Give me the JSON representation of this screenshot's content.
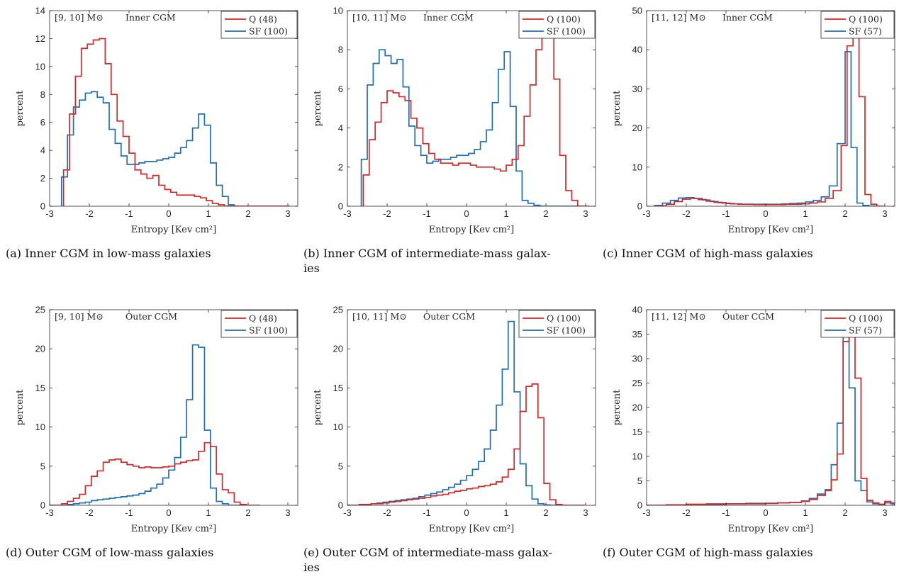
{
  "figure": {
    "captions": [
      "(a) Inner CGM in low-mass galaxies",
      "(b) Inner CGM of intermediate-mass galaxies",
      "(c) Inner CGM of high-mass galaxies",
      "(d) Outer CGM of low-mass galaxies",
      "(e) Outer CGM of intermediate-mass galaxies",
      "(f) Outer CGM of high-mass galaxies"
    ]
  },
  "colors": {
    "Q": "#d62728",
    "SF": "#1f6fb4"
  },
  "chart_data": [
    {
      "type": "line",
      "step": true,
      "grid": false,
      "legend": "top-right",
      "annotation_mass": "[9, 10] M⊙",
      "annotation_region": "Inner CGM",
      "xlabel": "Entropy [Kev cm²]",
      "ylabel": "percent",
      "xlim": [
        -3,
        3.25
      ],
      "ylim": [
        0,
        14
      ],
      "xticks": [
        -3,
        -2,
        -1,
        0,
        1,
        2,
        3
      ],
      "yticks": [
        0,
        2,
        4,
        6,
        8,
        10,
        12,
        14
      ],
      "series": [
        {
          "name": "Q (48)",
          "edges": [
            -2.65,
            -2.5,
            -2.35,
            -2.2,
            -2.05,
            -1.9,
            -1.75,
            -1.6,
            -1.45,
            -1.3,
            -1.15,
            -1.0,
            -0.85,
            -0.7,
            -0.55,
            -0.4,
            -0.25,
            -0.1,
            0.05,
            0.2,
            0.35,
            0.5,
            0.65,
            0.8,
            0.95,
            1.1,
            1.25,
            1.4,
            1.55,
            1.7,
            1.85,
            2.0,
            2.15,
            2.3,
            2.45,
            2.6,
            2.75,
            2.9,
            3.05
          ],
          "values": [
            2.6,
            6.6,
            9.3,
            11.3,
            11.6,
            11.9,
            12.0,
            10.2,
            8.0,
            6.1,
            5.0,
            3.8,
            2.6,
            2.3,
            2.0,
            2.2,
            1.5,
            1.2,
            1.0,
            0.8,
            0.8,
            0.8,
            0.7,
            0.6,
            0.4,
            0.2,
            0.1,
            0,
            0,
            0,
            0,
            0,
            0,
            0,
            0,
            0,
            0,
            0
          ]
        },
        {
          "name": "SF (100)",
          "edges": [
            -2.7,
            -2.55,
            -2.4,
            -2.25,
            -2.1,
            -1.95,
            -1.8,
            -1.65,
            -1.5,
            -1.35,
            -1.2,
            -1.05,
            -0.9,
            -0.75,
            -0.6,
            -0.45,
            -0.3,
            -0.15,
            0.0,
            0.15,
            0.3,
            0.45,
            0.6,
            0.75,
            0.9,
            1.05,
            1.2,
            1.35,
            1.5,
            1.65,
            1.8,
            1.95,
            2.1,
            2.25,
            2.4,
            2.55,
            2.7,
            2.85,
            3.0
          ],
          "values": [
            2.1,
            5.1,
            7.1,
            7.6,
            8.1,
            8.2,
            7.8,
            7.4,
            5.5,
            4.5,
            3.6,
            3.0,
            3.0,
            3.1,
            3.2,
            3.2,
            3.3,
            3.4,
            3.5,
            3.8,
            4.2,
            4.7,
            5.6,
            6.6,
            5.8,
            3.1,
            1.5,
            0.7,
            0.1,
            0,
            0,
            0,
            0,
            0,
            0,
            0,
            0,
            0
          ]
        }
      ]
    },
    {
      "type": "line",
      "step": true,
      "grid": false,
      "legend": "top-right",
      "annotation_mass": "[10, 11] M⊙",
      "annotation_region": "Inner CGM",
      "xlabel": "Entropy [Kev cm²]",
      "ylabel": "percent",
      "xlim": [
        -3,
        3.25
      ],
      "ylim": [
        0,
        10
      ],
      "xticks": [
        -3,
        -2,
        -1,
        0,
        1,
        2,
        3
      ],
      "yticks": [
        0,
        2,
        4,
        6,
        8,
        10
      ],
      "series": [
        {
          "name": "Q (100)",
          "edges": [
            -2.6,
            -2.45,
            -2.3,
            -2.15,
            -2.0,
            -1.85,
            -1.7,
            -1.55,
            -1.4,
            -1.25,
            -1.1,
            -0.95,
            -0.8,
            -0.65,
            -0.5,
            -0.35,
            -0.2,
            -0.05,
            0.1,
            0.25,
            0.4,
            0.55,
            0.7,
            0.85,
            1.0,
            1.15,
            1.3,
            1.45,
            1.6,
            1.75,
            1.9,
            2.05,
            2.2,
            2.35,
            2.5,
            2.65,
            2.8,
            2.95,
            3.1
          ],
          "values": [
            1.6,
            3.4,
            4.3,
            5.3,
            5.9,
            5.8,
            5.6,
            5.4,
            4.5,
            4.0,
            3.2,
            2.7,
            2.4,
            2.2,
            2.2,
            2.1,
            2.2,
            2.2,
            2.1,
            2.0,
            2.0,
            2.0,
            1.9,
            1.8,
            2.1,
            2.4,
            3.1,
            4.6,
            6.2,
            8.0,
            8.9,
            9.3,
            6.5,
            2.6,
            0.8,
            0.3,
            0,
            0
          ]
        },
        {
          "name": "SF (100)",
          "edges": [
            -2.65,
            -2.5,
            -2.35,
            -2.2,
            -2.05,
            -1.9,
            -1.75,
            -1.6,
            -1.45,
            -1.3,
            -1.15,
            -1.0,
            -0.85,
            -0.7,
            -0.55,
            -0.4,
            -0.25,
            -0.1,
            0.05,
            0.2,
            0.35,
            0.5,
            0.65,
            0.8,
            0.95,
            1.1,
            1.25,
            1.4,
            1.55,
            1.7,
            1.85,
            2.0,
            2.15,
            2.3,
            2.45,
            2.6,
            2.75,
            2.9,
            3.05
          ],
          "values": [
            2.4,
            6.2,
            7.3,
            8.0,
            7.7,
            7.3,
            7.5,
            6.1,
            4.1,
            3.1,
            2.6,
            2.2,
            2.3,
            2.4,
            2.4,
            2.5,
            2.6,
            2.6,
            2.7,
            2.9,
            3.3,
            3.9,
            5.3,
            7.0,
            7.9,
            5.1,
            1.8,
            0.3,
            0.15,
            0.05,
            0,
            0,
            0,
            0,
            0,
            0,
            0,
            0
          ]
        }
      ]
    },
    {
      "type": "line",
      "step": true,
      "grid": false,
      "legend": "top-right",
      "annotation_mass": "[11, 12] M⊙",
      "annotation_region": "Inner CGM",
      "xlabel": "Entropy [Kev cm²]",
      "ylabel": "percent",
      "xlim": [
        -3,
        3.25
      ],
      "ylim": [
        0,
        50
      ],
      "xticks": [
        -3,
        -2,
        -1,
        0,
        1,
        2,
        3
      ],
      "yticks": [
        0,
        10,
        20,
        30,
        40,
        50
      ],
      "series": [
        {
          "name": "Q (100)",
          "edges": [
            -2.7,
            -2.5,
            -2.3,
            -2.1,
            -1.9,
            -1.7,
            -1.5,
            -1.3,
            -1.1,
            -0.9,
            -0.7,
            -0.5,
            -0.3,
            -0.1,
            0.1,
            0.3,
            0.5,
            0.7,
            0.9,
            1.1,
            1.3,
            1.5,
            1.7,
            1.9,
            2.05,
            2.2,
            2.35,
            2.5,
            2.65,
            2.8,
            3.0
          ],
          "values": [
            0.1,
            0.5,
            1.2,
            1.8,
            2.0,
            1.7,
            1.3,
            1.0,
            0.8,
            0.6,
            0.5,
            0.5,
            0.4,
            0.4,
            0.4,
            0.4,
            0.5,
            0.5,
            0.6,
            0.8,
            1.1,
            2.0,
            4.0,
            15.5,
            41.0,
            43.5,
            28.0,
            3.0,
            0.5,
            0
          ]
        },
        {
          "name": "SF (57)",
          "edges": [
            -2.8,
            -2.6,
            -2.4,
            -2.2,
            -2.0,
            -1.8,
            -1.6,
            -1.4,
            -1.2,
            -1.0,
            -0.8,
            -0.6,
            -0.4,
            -0.2,
            0.0,
            0.2,
            0.4,
            0.6,
            0.8,
            1.0,
            1.2,
            1.4,
            1.6,
            1.8,
            2.0,
            2.15,
            2.3,
            2.45,
            2.6,
            2.8
          ],
          "values": [
            0.2,
            0.8,
            1.5,
            2.1,
            2.2,
            2.0,
            1.6,
            1.2,
            0.9,
            0.7,
            0.6,
            0.5,
            0.5,
            0.5,
            0.5,
            0.5,
            0.6,
            0.7,
            0.8,
            1.1,
            1.5,
            2.4,
            5.2,
            16.0,
            39.5,
            15.0,
            0.8,
            0.2,
            0
          ]
        }
      ]
    },
    {
      "type": "line",
      "step": true,
      "grid": false,
      "legend": "top-right",
      "annotation_mass": "[9, 10] M⊙",
      "annotation_region": "Outer CGM",
      "xlabel": "Entropy [Kev cm²]",
      "ylabel": "percent",
      "xlim": [
        -3,
        3.25
      ],
      "ylim": [
        0,
        25
      ],
      "xticks": [
        -3,
        -2,
        -1,
        0,
        1,
        2,
        3
      ],
      "yticks": [
        0,
        5,
        10,
        15,
        20,
        25
      ],
      "series": [
        {
          "name": "Q (48)",
          "edges": [
            -3.0,
            -2.7,
            -2.55,
            -2.4,
            -2.25,
            -2.1,
            -1.95,
            -1.8,
            -1.65,
            -1.5,
            -1.35,
            -1.2,
            -1.05,
            -0.9,
            -0.75,
            -0.6,
            -0.45,
            -0.3,
            -0.15,
            0.0,
            0.15,
            0.3,
            0.45,
            0.6,
            0.75,
            0.9,
            1.05,
            1.2,
            1.35,
            1.5,
            1.65,
            1.8,
            1.95,
            2.1,
            2.3
          ],
          "values": [
            0,
            0.2,
            0.5,
            0.9,
            1.4,
            2.5,
            3.7,
            4.4,
            5.5,
            5.8,
            5.9,
            5.5,
            5.2,
            5.0,
            4.8,
            4.9,
            4.8,
            4.8,
            4.9,
            5.0,
            5.3,
            5.5,
            5.7,
            5.8,
            6.9,
            8.0,
            7.5,
            4.0,
            2.0,
            1.6,
            0.4,
            0.1,
            0,
            0
          ]
        },
        {
          "name": "SF (100)",
          "edges": [
            -3.0,
            -2.55,
            -2.4,
            -2.25,
            -2.1,
            -1.95,
            -1.8,
            -1.65,
            -1.5,
            -1.35,
            -1.2,
            -1.05,
            -0.9,
            -0.75,
            -0.6,
            -0.45,
            -0.3,
            -0.15,
            0.0,
            0.15,
            0.3,
            0.45,
            0.6,
            0.75,
            0.9,
            1.05,
            1.2,
            1.35,
            1.5,
            1.65,
            1.8,
            2.0
          ],
          "values": [
            0,
            0.1,
            0.2,
            0.3,
            0.4,
            0.6,
            0.7,
            0.8,
            0.9,
            1.0,
            1.1,
            1.2,
            1.3,
            1.5,
            1.8,
            2.2,
            2.7,
            3.5,
            4.5,
            6.1,
            8.7,
            13.5,
            20.5,
            20.2,
            9.6,
            2.2,
            0.5,
            0.2,
            0,
            0,
            0
          ]
        }
      ]
    },
    {
      "type": "line",
      "step": true,
      "grid": false,
      "legend": "top-right",
      "annotation_mass": "[10, 11] M⊙",
      "annotation_region": "Outer CGM",
      "xlabel": "Entropy [Kev cm²]",
      "ylabel": "percent",
      "xlim": [
        -3,
        3.25
      ],
      "ylim": [
        0,
        25
      ],
      "xticks": [
        -3,
        -2,
        -1,
        0,
        1,
        2,
        3
      ],
      "yticks": [
        0,
        5,
        10,
        15,
        20,
        25
      ],
      "series": [
        {
          "name": "Q (100)",
          "edges": [
            -3.0,
            -2.7,
            -2.55,
            -2.4,
            -2.25,
            -2.1,
            -1.95,
            -1.8,
            -1.65,
            -1.5,
            -1.35,
            -1.2,
            -1.05,
            -0.9,
            -0.75,
            -0.6,
            -0.45,
            -0.3,
            -0.15,
            0.0,
            0.15,
            0.3,
            0.45,
            0.6,
            0.75,
            0.9,
            1.05,
            1.2,
            1.35,
            1.5,
            1.65,
            1.8,
            1.95,
            2.1,
            2.25,
            2.4,
            2.55,
            2.7,
            2.85,
            3.0
          ],
          "values": [
            0,
            0.1,
            0.1,
            0.2,
            0.2,
            0.3,
            0.4,
            0.5,
            0.6,
            0.7,
            0.8,
            0.9,
            1.0,
            1.2,
            1.3,
            1.4,
            1.6,
            1.8,
            1.9,
            2.1,
            2.2,
            2.4,
            2.5,
            2.7,
            3.0,
            3.6,
            4.6,
            7.2,
            12.0,
            15.2,
            15.5,
            11.2,
            2.8,
            0.7,
            0.1,
            0,
            0,
            0,
            0
          ]
        },
        {
          "name": "SF (100)",
          "edges": [
            -3.0,
            -2.55,
            -2.4,
            -2.25,
            -2.1,
            -1.95,
            -1.8,
            -1.65,
            -1.5,
            -1.35,
            -1.2,
            -1.05,
            -0.9,
            -0.75,
            -0.6,
            -0.45,
            -0.3,
            -0.15,
            0.0,
            0.15,
            0.3,
            0.45,
            0.6,
            0.75,
            0.9,
            1.05,
            1.2,
            1.35,
            1.5,
            1.65,
            1.8,
            1.95,
            2.1,
            2.25,
            2.5
          ],
          "values": [
            0,
            0.1,
            0.2,
            0.3,
            0.4,
            0.5,
            0.6,
            0.7,
            0.8,
            0.9,
            1.1,
            1.3,
            1.5,
            1.7,
            2.0,
            2.3,
            2.7,
            3.2,
            3.8,
            4.6,
            5.6,
            7.2,
            9.6,
            12.8,
            17.4,
            23.5,
            14.5,
            5.3,
            2.5,
            0.8,
            0.2,
            0.05,
            0,
            0
          ]
        }
      ]
    },
    {
      "type": "line",
      "step": true,
      "grid": false,
      "legend": "top-right",
      "annotation_mass": "[11, 12] M⊙",
      "annotation_region": "Outer CGM",
      "xlabel": "Entropy [Kev cm²]",
      "ylabel": "percent",
      "xlim": [
        -3,
        3.25
      ],
      "ylim": [
        0,
        40
      ],
      "xticks": [
        -3,
        -2,
        -1,
        0,
        1,
        2,
        3
      ],
      "yticks": [
        0,
        5,
        10,
        15,
        20,
        25,
        30,
        35,
        40
      ],
      "series": [
        {
          "name": "Q (100)",
          "edges": [
            -3.0,
            -2.5,
            -2.0,
            -1.5,
            -1.0,
            -0.5,
            0.0,
            0.3,
            0.6,
            0.9,
            1.1,
            1.3,
            1.5,
            1.65,
            1.8,
            1.95,
            2.1,
            2.25,
            2.4,
            2.55,
            2.7,
            2.85,
            3.0,
            3.15,
            3.25
          ],
          "values": [
            0,
            0.1,
            0.2,
            0.2,
            0.3,
            0.3,
            0.4,
            0.5,
            0.6,
            0.8,
            1.2,
            2.0,
            3.0,
            5.2,
            10.5,
            33.5,
            36.0,
            26.0,
            5.5,
            1.0,
            0.5,
            0.2,
            0.8,
            0.5
          ]
        },
        {
          "name": "SF (57)",
          "edges": [
            -3.0,
            -2.5,
            -2.0,
            -1.5,
            -1.0,
            -0.5,
            0.0,
            0.3,
            0.6,
            0.9,
            1.1,
            1.3,
            1.5,
            1.65,
            1.8,
            1.95,
            2.1,
            2.25,
            2.4,
            2.55,
            2.7,
            2.85,
            3.0,
            3.15,
            3.25
          ],
          "values": [
            0,
            0.1,
            0.2,
            0.3,
            0.3,
            0.4,
            0.4,
            0.5,
            0.6,
            0.9,
            1.4,
            2.3,
            3.2,
            8.3,
            16.8,
            38.0,
            24.0,
            5.0,
            3.0,
            0.7,
            0.3,
            0.2,
            0.5,
            0.3
          ]
        }
      ]
    }
  ]
}
